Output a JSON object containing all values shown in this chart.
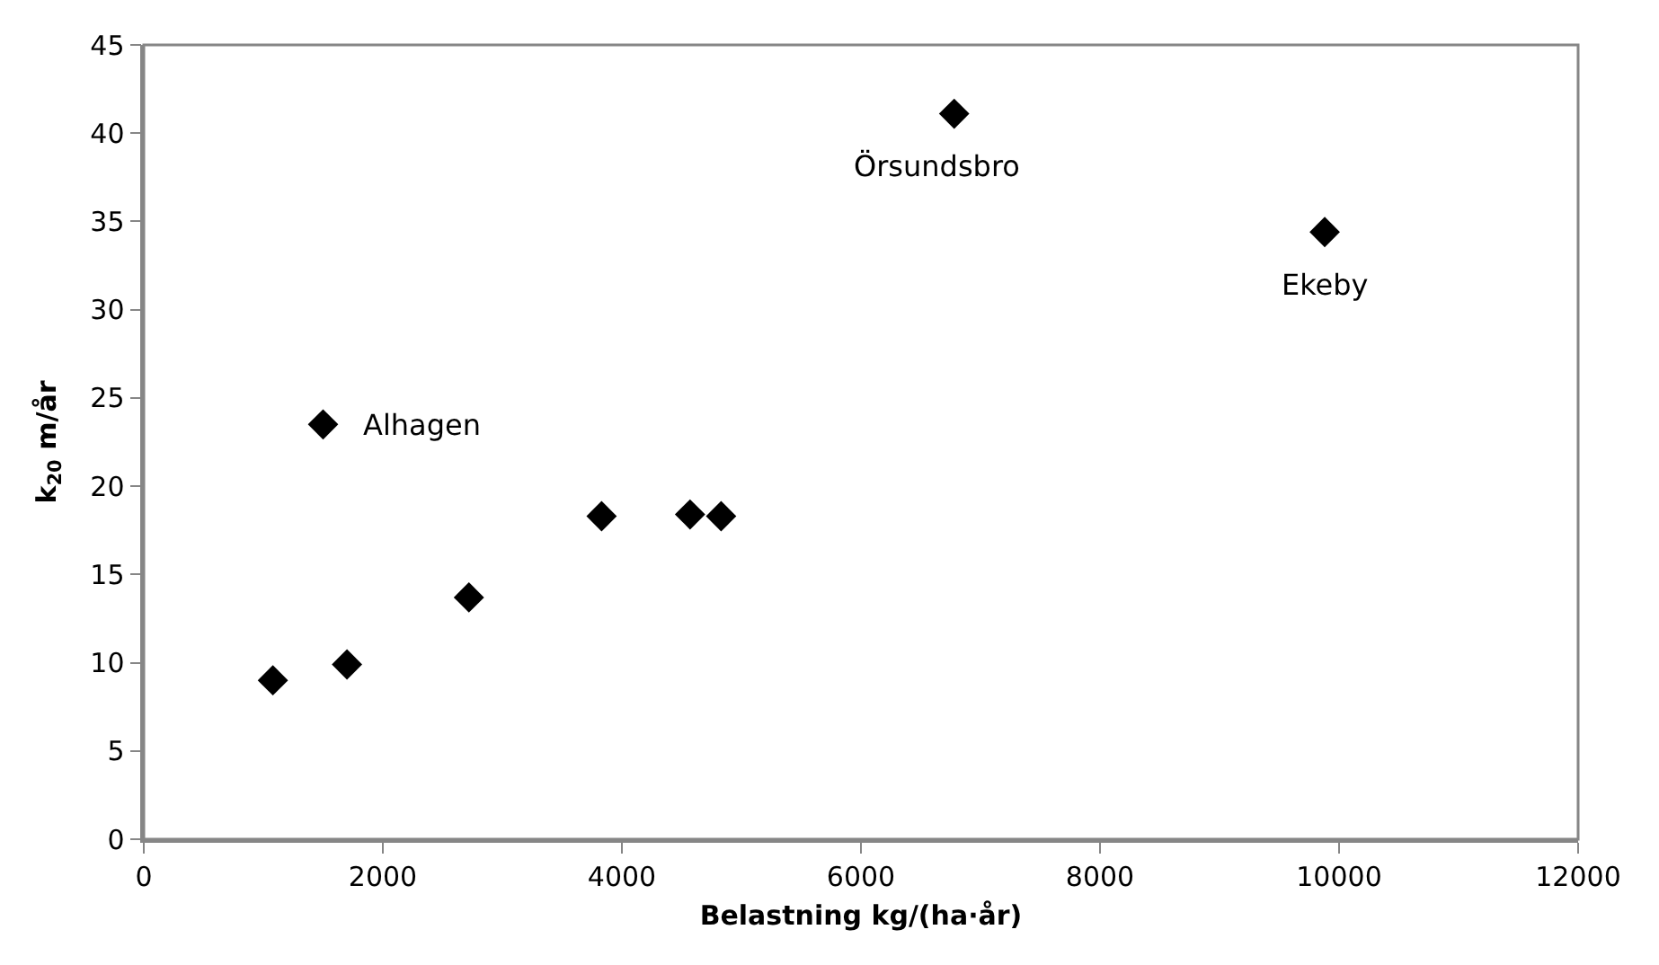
{
  "chart_data": {
    "type": "scatter",
    "xlabel": "Belastning kg/(ha·år)",
    "ylabel": "k$_{20}$ m/år",
    "x": [
      1080,
      1500,
      1700,
      2720,
      3830,
      4570,
      4830,
      6780,
      9880
    ],
    "values": [
      9.0,
      23.5,
      9.9,
      13.7,
      18.3,
      18.4,
      18.3,
      41.1,
      34.4
    ],
    "color": "#000000",
    "marker": "diamond",
    "xlim": [
      0,
      12000
    ],
    "xticks": [
      0,
      2000,
      4000,
      6000,
      8000,
      10000,
      12000
    ],
    "ylim": [
      0,
      45
    ],
    "yticks": [
      0,
      5,
      10,
      15,
      20,
      25,
      30,
      35,
      40,
      45
    ],
    "annotations": [
      {
        "text": "Alhagen",
        "x": 1500,
        "y": 23.5
      },
      {
        "text": "Örsundsbro",
        "x": 6780,
        "y": 41.1
      },
      {
        "text": "Ekeby",
        "x": 9880,
        "y": 34.4
      }
    ],
    "legend": false
  }
}
